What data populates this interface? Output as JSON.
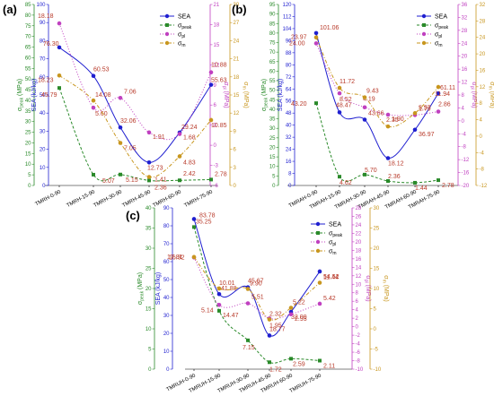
{
  "colors": {
    "sea": "#1f1fd0",
    "peak": "#2a8a2a",
    "pl": "#c040c0",
    "m": "#c8961e",
    "label": "#b83a2a"
  },
  "chart_data": [
    {
      "type": "line",
      "panel": "(a)",
      "categories": [
        "TMRH-0-90",
        "TMRH-15-90",
        "TMRH-30-90",
        "TMRH-45-90",
        "TMRH-60-90",
        "TMRH-75-90"
      ],
      "legend": {
        "placement": "top-right",
        "items": [
          "SEA",
          "σpeak",
          "σpl",
          "σm"
        ]
      },
      "axes": {
        "peak": {
          "label": "σpeak (MPa)",
          "range": [
            0,
            85
          ],
          "ticks": [
            "0",
            "5",
            "10",
            "15",
            "20",
            "25",
            "30",
            "35",
            "40",
            "45",
            "50",
            "55",
            "60",
            "65",
            "70",
            "75",
            "80",
            "85"
          ]
        },
        "sea": {
          "label": "SEA (kJ/kg)",
          "range": [
            0,
            100
          ],
          "ticks": [
            "0",
            "10",
            "20",
            "30",
            "40",
            "50",
            "60",
            "70",
            "80",
            "90",
            "100"
          ]
        },
        "pl": {
          "label": "σpl (MPa)",
          "range": [
            -6,
            21
          ],
          "ticks": [
            "-6",
            "-3",
            "0",
            "3",
            "6",
            "9",
            "12",
            "15",
            "18",
            "21"
          ]
        },
        "m": {
          "label": "σm (MPa)",
          "range": [
            0,
            30
          ],
          "ticks": [
            "0",
            "3",
            "6",
            "9",
            "12",
            "15",
            "18",
            "21",
            "24",
            "27",
            "30"
          ]
        }
      },
      "series": [
        {
          "name": "SEA",
          "values": [
            76.3,
            60.53,
            32.06,
            12.73,
            29.24,
            55.63
          ],
          "labels": [
            "76.30",
            "60.53",
            "32.06",
            "12.73",
            "29.24",
            "55.63"
          ]
        },
        {
          "name": "σpeak",
          "values": [
            45.79,
            5.07,
            5.15,
            2.36,
            2.42,
            2.78
          ],
          "labels": [
            "45.79",
            "5.07",
            "5.15",
            "2.36",
            "2.42",
            "2.78"
          ]
        },
        {
          "name": "σpl",
          "values": [
            18.18,
            5.6,
            7.06,
            1.91,
            1.68,
            10.88
          ],
          "labels": [
            "18.18",
            "5.60",
            "7.06",
            "1.91",
            "1.68",
            "10.88"
          ]
        },
        {
          "name": "σm",
          "values": [
            18.23,
            14.08,
            7.05,
            1.41,
            4.83,
            10.85
          ],
          "labels": [
            "18.23",
            "14.08",
            "7.05",
            "1.41",
            "4.83",
            "10.85"
          ]
        }
      ]
    },
    {
      "type": "line",
      "panel": "(b)",
      "categories": [
        "TMRAH-0-90",
        "TMRAH-15-90",
        "TMRAH-30-90",
        "TMRAH-45-90",
        "TMRAH-60-90",
        "TMRAH-75-90"
      ],
      "legend": {
        "placement": "top-right",
        "items": [
          "SEA",
          "σpeak",
          "σpl",
          "σm"
        ]
      },
      "axes": {
        "peak": {
          "label": "σpeak (MPa)",
          "range": [
            0,
            95
          ],
          "ticks": [
            "0",
            "5",
            "10",
            "15",
            "20",
            "25",
            "30",
            "35",
            "40",
            "45",
            "50",
            "55",
            "60",
            "65",
            "70",
            "75",
            "80",
            "85",
            "90",
            "95"
          ]
        },
        "sea": {
          "label": "SEA (kJ/kg)",
          "range": [
            0,
            120
          ],
          "ticks": [
            "0",
            "8",
            "16",
            "24",
            "32",
            "40",
            "48",
            "56",
            "64",
            "72",
            "80",
            "88",
            "96",
            "104",
            "112",
            "120"
          ]
        },
        "pl": {
          "label": "σpl (MPa)",
          "range": [
            -20,
            36
          ],
          "ticks": [
            "-20",
            "-16",
            "-12",
            "-8",
            "-4",
            "0",
            "4",
            "8",
            "12",
            "16",
            "20",
            "24",
            "28",
            "32",
            "36"
          ]
        },
        "m": {
          "label": "σm (MPa)",
          "range": [
            -12,
            32
          ],
          "ticks": [
            "-12",
            "-8",
            "-4",
            "0",
            "4",
            "8",
            "12",
            "16",
            "20",
            "24",
            "28",
            "32"
          ]
        }
      },
      "series": [
        {
          "name": "SEA",
          "values": [
            101.06,
            48.47,
            43.66,
            18.12,
            36.97,
            61.11
          ],
          "labels": [
            "101.06",
            "48.47",
            "43.66",
            "18.12",
            "36.97",
            "61.11"
          ]
        },
        {
          "name": "σpeak",
          "values": [
            43.2,
            4.62,
            5.7,
            2.36,
            1.44,
            2.78
          ],
          "labels": [
            "43.20",
            "4.62",
            "5.70",
            "2.36",
            "1.44",
            "2.78"
          ]
        },
        {
          "name": "σpl",
          "values": [
            23.97,
            8.52,
            4.19,
            1.9,
            1.79,
            2.86
          ],
          "labels": [
            "23.97",
            "8.52",
            "4.19",
            "1.90",
            "1.79",
            "2.86"
          ]
        },
        {
          "name": "σm",
          "values": [
            24.0,
            11.72,
            9.43,
            2.35,
            5.57,
            11.94
          ],
          "labels": [
            "24.00",
            "11.72",
            "9.43",
            "2.35",
            "5.57",
            "11.94"
          ]
        }
      ]
    },
    {
      "type": "line",
      "panel": "(c)",
      "categories": [
        "TMRUH-0-90",
        "TMRUH-15-90",
        "TMRUH-30-90",
        "TMRUH-45-90",
        "TMRUH-60-90",
        "TMRUH-75-90"
      ],
      "legend": {
        "placement": "top-right",
        "items": [
          "SEA",
          "σpeak",
          "σpl",
          "σm"
        ]
      },
      "axes": {
        "peak": {
          "label": "σpeak (MPa)",
          "range": [
            0,
            40
          ],
          "ticks": [
            "0",
            "5",
            "10",
            "15",
            "20",
            "25",
            "30",
            "35",
            "40"
          ]
        },
        "sea": {
          "label": "SEA (kJ/kg)",
          "range": [
            0,
            90
          ],
          "ticks": [
            "0",
            "10",
            "20",
            "30",
            "40",
            "50",
            "60",
            "70",
            "80",
            "90"
          ]
        },
        "pl": {
          "label": "σpl (MPa)",
          "range": [
            -10,
            28
          ],
          "ticks": [
            "-10",
            "-8",
            "-6",
            "-4",
            "-2",
            "0",
            "2",
            "4",
            "6",
            "8",
            "10",
            "12",
            "14",
            "16",
            "18",
            "20",
            "22",
            "24",
            "26",
            "28"
          ]
        },
        "m": {
          "label": "σm (MPa)",
          "range": [
            -10,
            30
          ],
          "ticks": [
            "-10",
            "-5",
            "0",
            "5",
            "10",
            "15",
            "20",
            "25",
            "30"
          ]
        }
      },
      "series": [
        {
          "name": "SEA",
          "values": [
            83.78,
            41.88,
            45.67,
            18.77,
            32.0,
            54.52
          ],
          "labels": [
            "83.78",
            "41.88",
            "45.67",
            "18.77",
            "32.00",
            "54.52"
          ]
        },
        {
          "name": "σpeak",
          "values": [
            35.25,
            14.47,
            7.15,
            1.72,
            2.59,
            2.11
          ],
          "labels": [
            "35.25",
            "14.47",
            "7.15",
            "1.72",
            "2.59",
            "2.11"
          ]
        },
        {
          "name": "σpl",
          "values": [
            16.32,
            5.14,
            5.51,
            1.95,
            2.93,
            5.42
          ],
          "labels": [
            "16.32",
            "5.14",
            "5.51",
            "1.95",
            "2.93",
            "5.42"
          ]
        },
        {
          "name": "σm",
          "values": [
            17.81,
            10.01,
            9.9,
            2.32,
            5.22,
            11.44
          ],
          "labels": [
            "17.81",
            "10.01",
            "9.90",
            "2.32",
            "5.22",
            "11.44"
          ]
        }
      ]
    }
  ]
}
